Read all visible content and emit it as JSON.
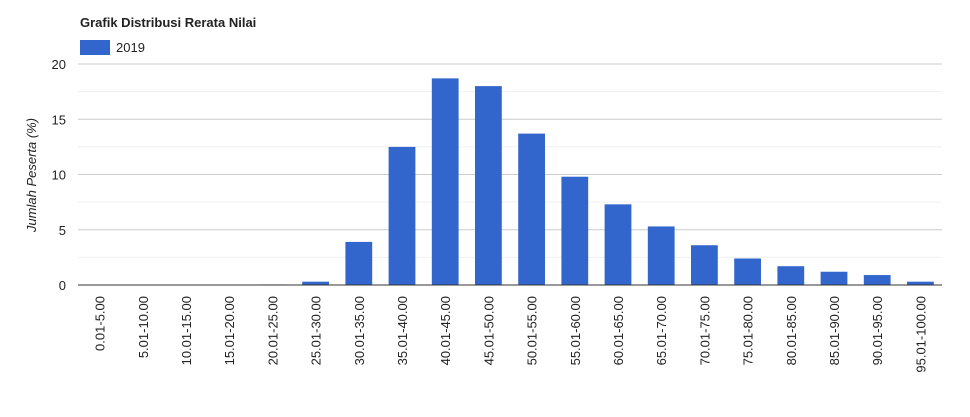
{
  "chart_data": {
    "type": "bar",
    "title": "Grafik Distribusi Rerata Nilai",
    "y_label": "Jumlah Peserta (%)",
    "categories": [
      "0.01-5.00",
      "5.01-10.00",
      "10.01-15.00",
      "15.01-20.00",
      "20.01-25.00",
      "25.01-30.00",
      "30.01-35.00",
      "35.01-40.00",
      "40.01-45.00",
      "45.01-50.00",
      "50.01-55.00",
      "55.01-60.00",
      "60.01-65.00",
      "65.01-70.00",
      "70.01-75.00",
      "75.01-80.00",
      "80.01-85.00",
      "85.01-90.00",
      "90.01-95.00",
      "95.01-100.00"
    ],
    "series": [
      {
        "name": "2019",
        "color": "#3366cc",
        "values": [
          0,
          0,
          0,
          0,
          0.05,
          0.3,
          3.9,
          12.5,
          18.7,
          18.0,
          13.7,
          9.8,
          7.3,
          5.3,
          3.6,
          2.4,
          1.7,
          1.2,
          0.9,
          0.3
        ]
      }
    ],
    "ylim": [
      0,
      20
    ],
    "yticks": [
      0,
      5,
      10,
      15,
      20
    ],
    "grid": true
  }
}
